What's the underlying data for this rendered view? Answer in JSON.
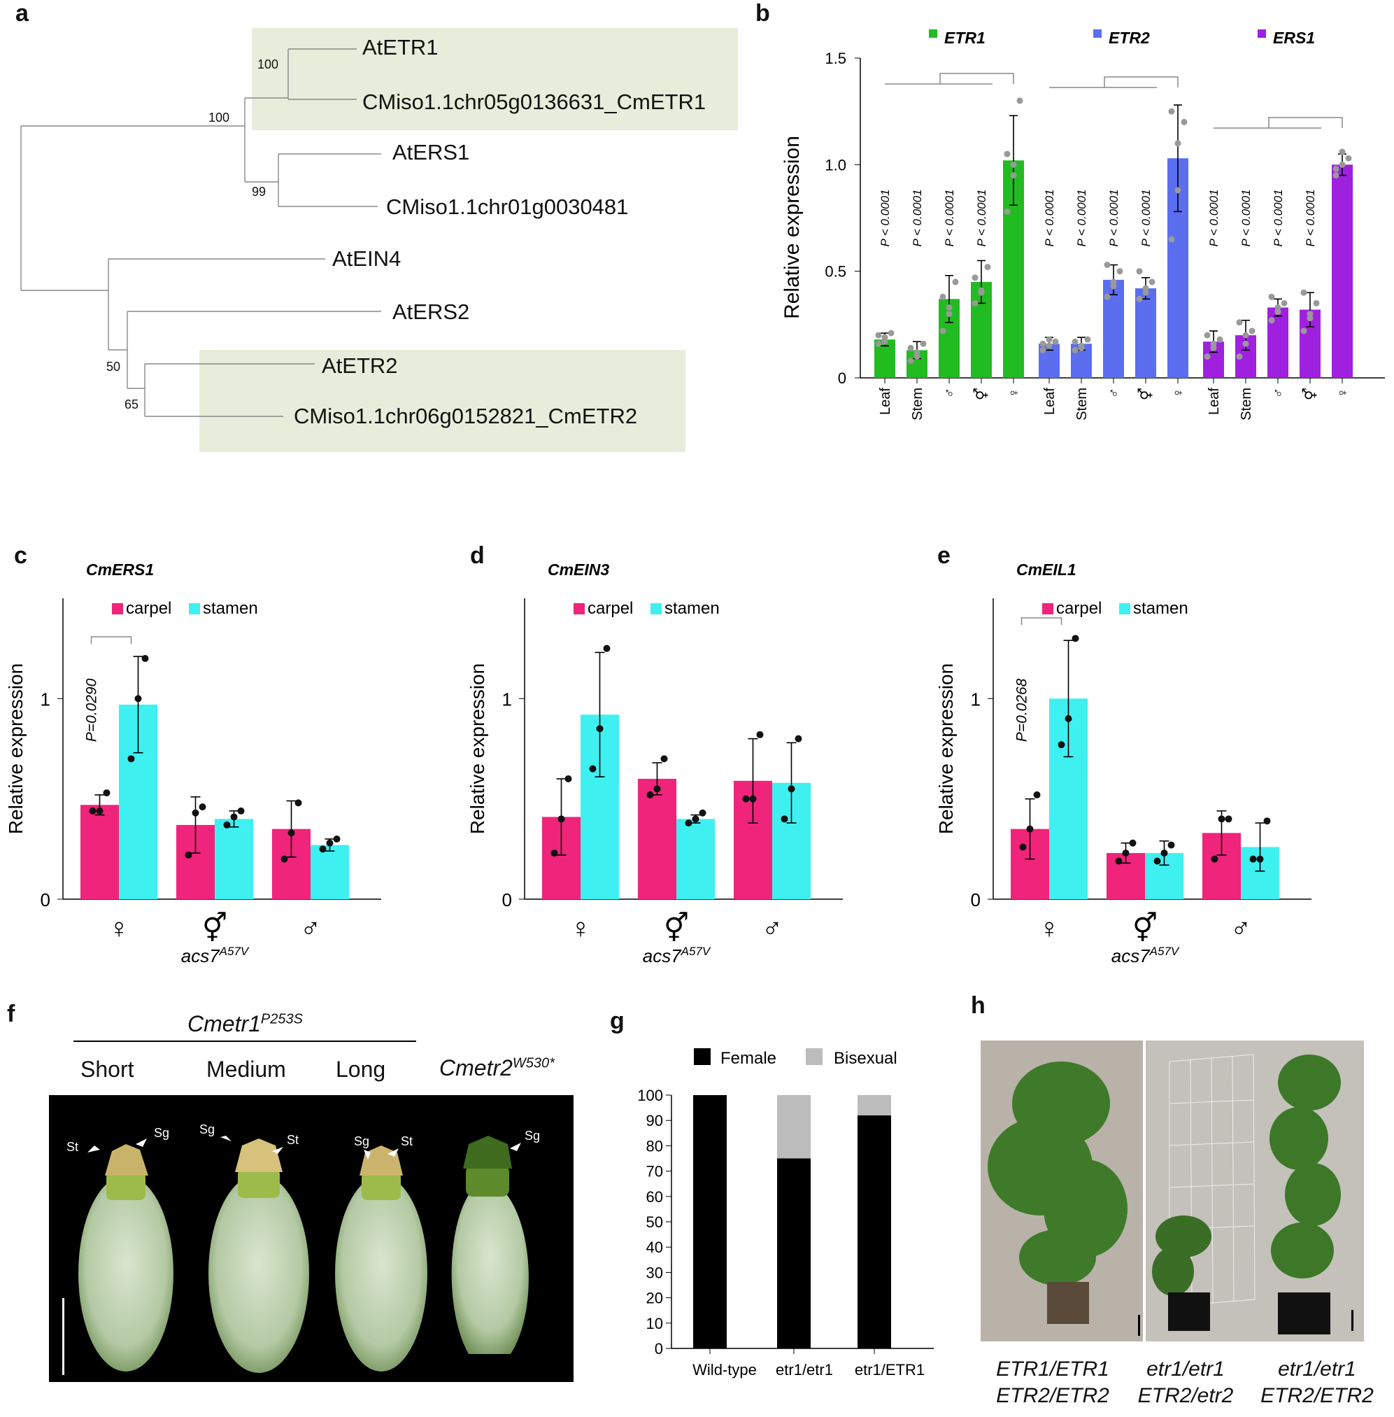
{
  "panels": {
    "a": "a",
    "b": "b",
    "c": "c",
    "d": "d",
    "e": "e",
    "f": "f",
    "g": "g",
    "h": "h"
  },
  "colors": {
    "green": "#22bb22",
    "blue": "#5b6ef0",
    "purple": "#a020e0",
    "carpel": "#f0247a",
    "stamen": "#3ff0f0",
    "highlight": "#e6eedb",
    "point": "#999999"
  },
  "tree": {
    "taxa": [
      "AtETR1",
      "CMiso1.1chr05g0136631_CmETR1",
      "AtERS1",
      "CMiso1.1chr01g0030481",
      "AtEIN4",
      "AtERS2",
      "AtETR2",
      "CMiso1.1chr06g0152821_CmETR2"
    ],
    "bootstrap": [
      "100",
      "100",
      "99",
      "50",
      "65"
    ]
  },
  "chart_data": [
    {
      "id": "b",
      "type": "bar",
      "title": "",
      "ylabel": "Relative expression",
      "ylim": [
        0,
        1.5
      ],
      "yticks": [
        "0",
        "0.5",
        "1.0",
        "1.5"
      ],
      "categories": [
        "Leaf",
        "Stem",
        "♂",
        "⚥",
        "♀"
      ],
      "series": [
        {
          "name": "ETR1",
          "color": "green",
          "values": [
            0.18,
            0.13,
            0.37,
            0.45,
            1.02
          ],
          "errors": [
            0.03,
            0.04,
            0.11,
            0.1,
            0.21
          ],
          "points": [
            [
              0.16,
              0.19,
              0.21,
              0.2,
              0.17
            ],
            [
              0.08,
              0.12,
              0.16,
              0.14,
              0.1
            ],
            [
              0.22,
              0.3,
              0.45,
              0.38,
              0.33
            ],
            [
              0.35,
              0.41,
              0.52,
              0.47,
              0.4
            ],
            [
              0.78,
              0.95,
              1.3,
              1.05,
              1.0
            ]
          ],
          "pvalues": [
            "P < 0.0001",
            "P < 0.0001",
            "P < 0.0001",
            "P < 0.0001"
          ]
        },
        {
          "name": "ETR2",
          "color": "blue",
          "values": [
            0.16,
            0.16,
            0.46,
            0.42,
            1.03
          ],
          "errors": [
            0.03,
            0.03,
            0.07,
            0.05,
            0.25
          ],
          "points": [
            [
              0.13,
              0.15,
              0.17,
              0.16,
              0.18
            ],
            [
              0.13,
              0.15,
              0.18,
              0.17,
              0.14
            ],
            [
              0.38,
              0.43,
              0.5,
              0.53,
              0.45
            ],
            [
              0.37,
              0.4,
              0.45,
              0.5,
              0.42
            ],
            [
              0.65,
              0.88,
              1.2,
              1.25,
              1.1
            ]
          ],
          "pvalues": [
            "P < 0.0001",
            "P < 0.0001",
            "P < 0.0001",
            "P < 0.0001"
          ]
        },
        {
          "name": "ERS1",
          "color": "purple",
          "values": [
            0.17,
            0.2,
            0.33,
            0.32,
            1.0
          ],
          "errors": [
            0.05,
            0.07,
            0.04,
            0.08,
            0.05
          ],
          "points": [
            [
              0.1,
              0.14,
              0.18,
              0.2,
              0.16
            ],
            [
              0.1,
              0.16,
              0.22,
              0.26,
              0.2
            ],
            [
              0.27,
              0.31,
              0.35,
              0.38,
              0.33
            ],
            [
              0.22,
              0.28,
              0.35,
              0.4,
              0.3
            ],
            [
              0.95,
              1.0,
              1.03,
              0.98,
              1.06
            ]
          ],
          "pvalues": [
            "P < 0.0001",
            "P < 0.0001",
            "P < 0.0001",
            "P < 0.0001"
          ]
        }
      ]
    },
    {
      "id": "c",
      "type": "bar",
      "title": "CmERS1",
      "ylabel": "Relative expression",
      "ylim": [
        0,
        1.5
      ],
      "yticks": [
        "0",
        "1"
      ],
      "legend": [
        "carpel",
        "stamen"
      ],
      "groups": [
        "♀",
        "⚥",
        "♂"
      ],
      "sublabel": "acs7",
      "sublabel_sup": "A57V",
      "carpel": [
        0.47,
        0.37,
        0.35
      ],
      "stamen": [
        0.97,
        0.4,
        0.27
      ],
      "carpel_err": [
        0.05,
        0.14,
        0.14
      ],
      "stamen_err": [
        0.24,
        0.04,
        0.03
      ],
      "carpel_pts": [
        [
          0.44,
          0.44,
          0.53
        ],
        [
          0.22,
          0.43,
          0.46
        ],
        [
          0.2,
          0.33,
          0.48
        ]
      ],
      "stamen_pts": [
        [
          0.7,
          1.0,
          1.2
        ],
        [
          0.37,
          0.41,
          0.44
        ],
        [
          0.25,
          0.28,
          0.3
        ]
      ],
      "pvalue": "P=0.0290"
    },
    {
      "id": "d",
      "type": "bar",
      "title": "CmEIN3",
      "ylabel": "Relative expression",
      "ylim": [
        0,
        1.5
      ],
      "yticks": [
        "0",
        "1"
      ],
      "legend": [
        "carpel",
        "stamen"
      ],
      "groups": [
        "♀",
        "⚥",
        "♂"
      ],
      "sublabel": "acs7",
      "sublabel_sup": "A57V",
      "carpel": [
        0.41,
        0.6,
        0.59
      ],
      "stamen": [
        0.92,
        0.4,
        0.58
      ],
      "carpel_err": [
        0.19,
        0.08,
        0.21
      ],
      "stamen_err": [
        0.31,
        0.02,
        0.2
      ],
      "carpel_pts": [
        [
          0.23,
          0.4,
          0.6
        ],
        [
          0.52,
          0.55,
          0.7
        ],
        [
          0.5,
          0.5,
          0.82
        ]
      ],
      "stamen_pts": [
        [
          0.65,
          0.85,
          1.25
        ],
        [
          0.38,
          0.4,
          0.43
        ],
        [
          0.4,
          0.55,
          0.8
        ]
      ]
    },
    {
      "id": "e",
      "type": "bar",
      "title": "CmEIL1",
      "ylabel": "Relative expression",
      "ylim": [
        0,
        1.5
      ],
      "yticks": [
        "0",
        "1"
      ],
      "legend": [
        "carpel",
        "stamen"
      ],
      "groups": [
        "♀",
        "⚥",
        "♂"
      ],
      "sublabel": "acs7",
      "sublabel_sup": "A57V",
      "carpel": [
        0.35,
        0.23,
        0.33
      ],
      "stamen": [
        1.0,
        0.23,
        0.26
      ],
      "carpel_err": [
        0.15,
        0.05,
        0.11
      ],
      "stamen_err": [
        0.29,
        0.06,
        0.12
      ],
      "carpel_pts": [
        [
          0.26,
          0.35,
          0.52
        ],
        [
          0.19,
          0.23,
          0.28
        ],
        [
          0.2,
          0.4,
          0.4
        ]
      ],
      "stamen_pts": [
        [
          0.77,
          0.9,
          1.3
        ],
        [
          0.19,
          0.23,
          0.27
        ],
        [
          0.2,
          0.2,
          0.39
        ]
      ],
      "pvalue": "P=0.0268"
    },
    {
      "id": "g",
      "type": "bar",
      "stacked": true,
      "ylim": [
        0,
        100
      ],
      "yticks": [
        "0",
        "10",
        "20",
        "30",
        "40",
        "50",
        "60",
        "70",
        "80",
        "90",
        "100"
      ],
      "categories": [
        "Wild-type",
        "etr1/etr1",
        "etr1/ETR1"
      ],
      "series": [
        {
          "name": "Female",
          "color": "#000000",
          "values": [
            100,
            75,
            92
          ]
        },
        {
          "name": "Bisexual",
          "color": "#bcbcbc",
          "values": [
            0,
            25,
            8
          ]
        }
      ]
    }
  ],
  "f": {
    "group_title": "Cmetr1",
    "group_sup": "P253S",
    "labels": [
      "Short",
      "Medium",
      "Long"
    ],
    "mut2": "Cmetr2",
    "mut2_sup": "W530*",
    "marks": {
      "st": "St",
      "sg": "Sg"
    }
  },
  "h": {
    "genotypes": [
      {
        "l1": "ETR1/ETR1",
        "l2": "ETR2/ETR2"
      },
      {
        "l1": "etr1/etr1",
        "l2": "ETR2/etr2"
      },
      {
        "l1": "etr1/etr1",
        "l2": "ETR2/ETR2"
      }
    ]
  }
}
